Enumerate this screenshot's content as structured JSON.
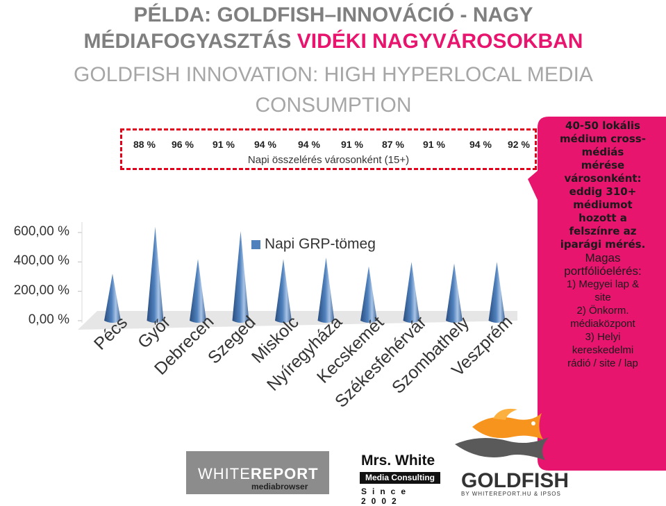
{
  "heading": {
    "line1": "PÉLDA: GOLDFISH–INNOVÁCIÓ - NAGY",
    "line2_grey": "MÉDIAFOGYASZTÁS",
    "line2_pink": "VIDÉKI NAGYVÁROSOKBAN",
    "subtitle": "GOLDFISH INNOVATION: HIGH HYPERLOCAL MEDIA CONSUMPTION"
  },
  "reach": {
    "values": [
      "88 %",
      "96 %",
      "91 %",
      "94 %",
      "94 %",
      "91 %",
      "87 %",
      "91 %",
      "94 %",
      "92 %"
    ],
    "label": "Napi összelérés városonként (15+)"
  },
  "chart_data": {
    "type": "bar",
    "shape": "cone",
    "categories": [
      "Pécs",
      "Győr",
      "Debrecen",
      "Szeged",
      "Miskolc",
      "Nyíregyháza",
      "Kecskemét",
      "Székesfehérvár",
      "Szombathely",
      "Veszprém"
    ],
    "series": [
      {
        "name": "Napi GRP-tömeg",
        "values": [
          320,
          640,
          420,
          610,
          420,
          430,
          370,
          400,
          390,
          400
        ]
      }
    ],
    "y_ticks": [
      "0,00 %",
      "200,00 %",
      "400,00 %",
      "600,00 %"
    ],
    "ylim": [
      0,
      600
    ],
    "legend_position": "top-center",
    "bar_color": "#4f81bd"
  },
  "callout": {
    "bold_lines": [
      "40-50 lokális",
      "médium cross-",
      "médiás",
      "mérése",
      "városonként:",
      "eddig 310+",
      "médiumot",
      "hozott a",
      "felszínre az",
      "iparági mérés."
    ],
    "normal_lines": [
      "Magas",
      "portfólióelérés:"
    ],
    "small_lines": [
      "1) Megyei lap &",
      "site",
      "2) Önkorm.",
      "médiaközpont",
      "3) Helyi",
      "kereskedelmi",
      "rádió / site / lap"
    ],
    "color": "#e8156f"
  },
  "logos": {
    "whitereport_a": "WHITE",
    "whitereport_b": "REPORT",
    "whitereport_sub": "mediabrowser",
    "mrswhite_name": "Mrs. White",
    "mrswhite_sub": "Media Consulting",
    "mrswhite_since": "Since 2002",
    "goldfish": "GOLDFISH",
    "goldfish_sub": "BY WHITEREPORT.HU & IPSOS"
  }
}
